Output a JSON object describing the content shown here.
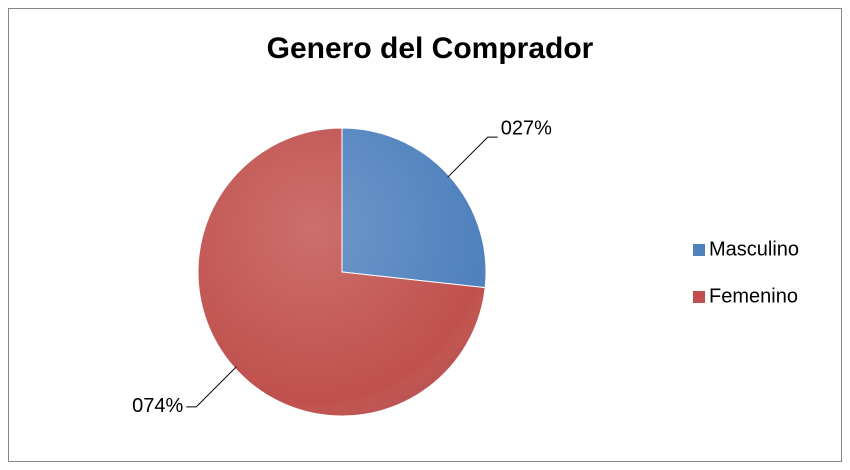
{
  "chart_data": {
    "type": "pie",
    "title": "Genero del Comprador",
    "categories": [
      "Masculino",
      "Femenino"
    ],
    "values": [
      27,
      74
    ],
    "value_labels": [
      "027%",
      "074%"
    ],
    "colors": [
      "#4f81bd",
      "#c0504d"
    ],
    "legend": "right"
  }
}
